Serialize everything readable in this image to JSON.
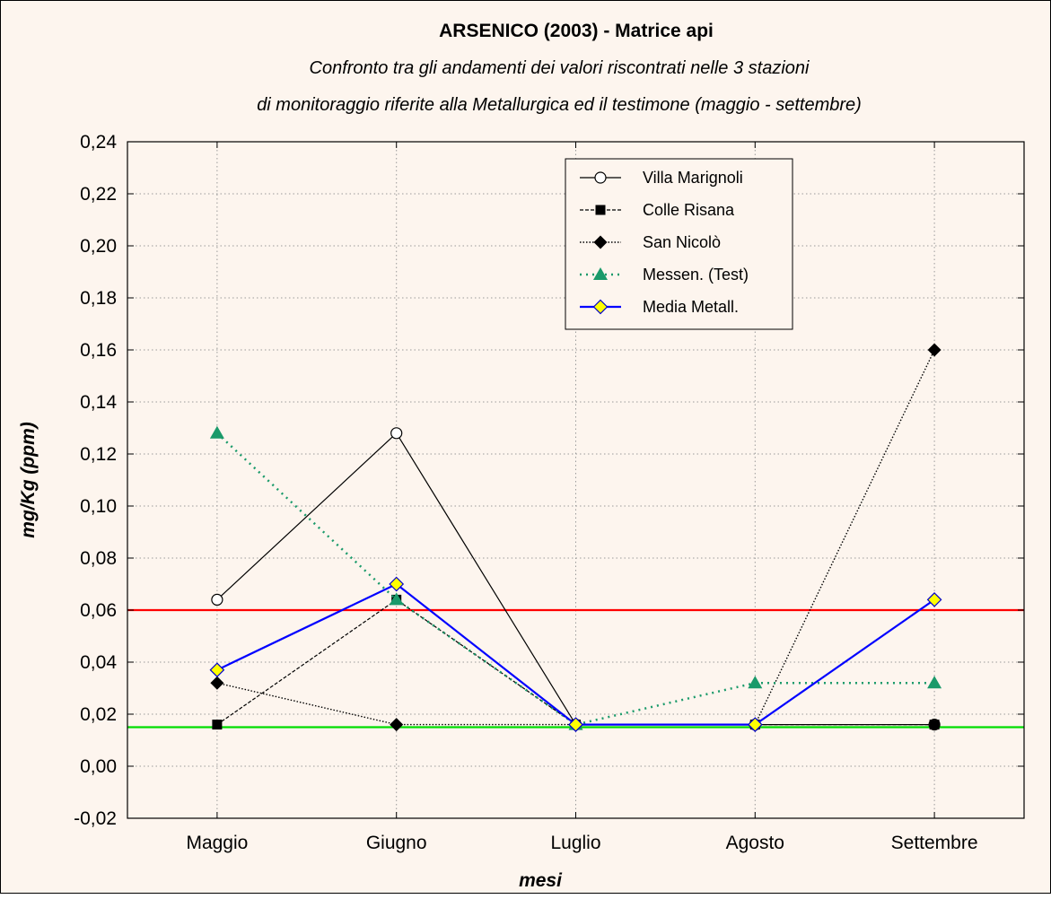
{
  "chart_data": {
    "type": "line",
    "title": "ARSENICO (2003) - Matrice api",
    "subtitle_lines": [
      "Confronto tra gli andamenti dei valori riscontrati nelle 3 stazioni",
      "di monitoraggio  riferite alla Metallurgica ed il testimone (maggio - settembre)"
    ],
    "xlabel": "mesi",
    "ylabel": "mg/Kg (ppm)",
    "categories": [
      "Maggio",
      "Giugno",
      "Luglio",
      "Agosto",
      "Settembre"
    ],
    "ylim": [
      -0.02,
      0.24
    ],
    "yticks": [
      -0.02,
      0.0,
      0.02,
      0.04,
      0.06,
      0.08,
      0.1,
      0.12,
      0.14,
      0.16,
      0.18,
      0.2,
      0.22,
      0.24
    ],
    "ytick_labels": [
      "-0,02",
      "0,00",
      "0,02",
      "0,04",
      "0,06",
      "0,08",
      "0,10",
      "0,12",
      "0,14",
      "0,16",
      "0,18",
      "0,20",
      "0,22",
      "0,24"
    ],
    "grid": true,
    "legend_position": "top-right",
    "series": [
      {
        "name": "Villa Marignoli",
        "values": [
          0.064,
          0.128,
          0.016,
          0.016,
          0.016
        ],
        "color": "#000000",
        "dash": "solid",
        "marker": "circle-open"
      },
      {
        "name": "Colle Risana",
        "values": [
          0.016,
          0.064,
          0.016,
          0.016,
          0.016
        ],
        "color": "#000000",
        "dash": "dash",
        "marker": "square"
      },
      {
        "name": "San Nicolò",
        "values": [
          0.032,
          0.016,
          0.016,
          0.016,
          0.16
        ],
        "color": "#000000",
        "dash": "dot",
        "marker": "diamond"
      },
      {
        "name": "Messen. (Test)",
        "values": [
          0.128,
          0.064,
          0.016,
          0.032,
          0.032
        ],
        "color": "#1a9a6a",
        "dash": "dot-green",
        "marker": "triangle"
      },
      {
        "name": "Media Metall.",
        "values": [
          0.037,
          0.07,
          0.016,
          0.016,
          0.064
        ],
        "color": "#0000ff",
        "dash": "solid",
        "marker": "diamond-yellow"
      }
    ],
    "reference_lines": [
      {
        "value": 0.06,
        "color": "#ff0000"
      },
      {
        "value": 0.015,
        "color": "#00dd00"
      }
    ]
  }
}
